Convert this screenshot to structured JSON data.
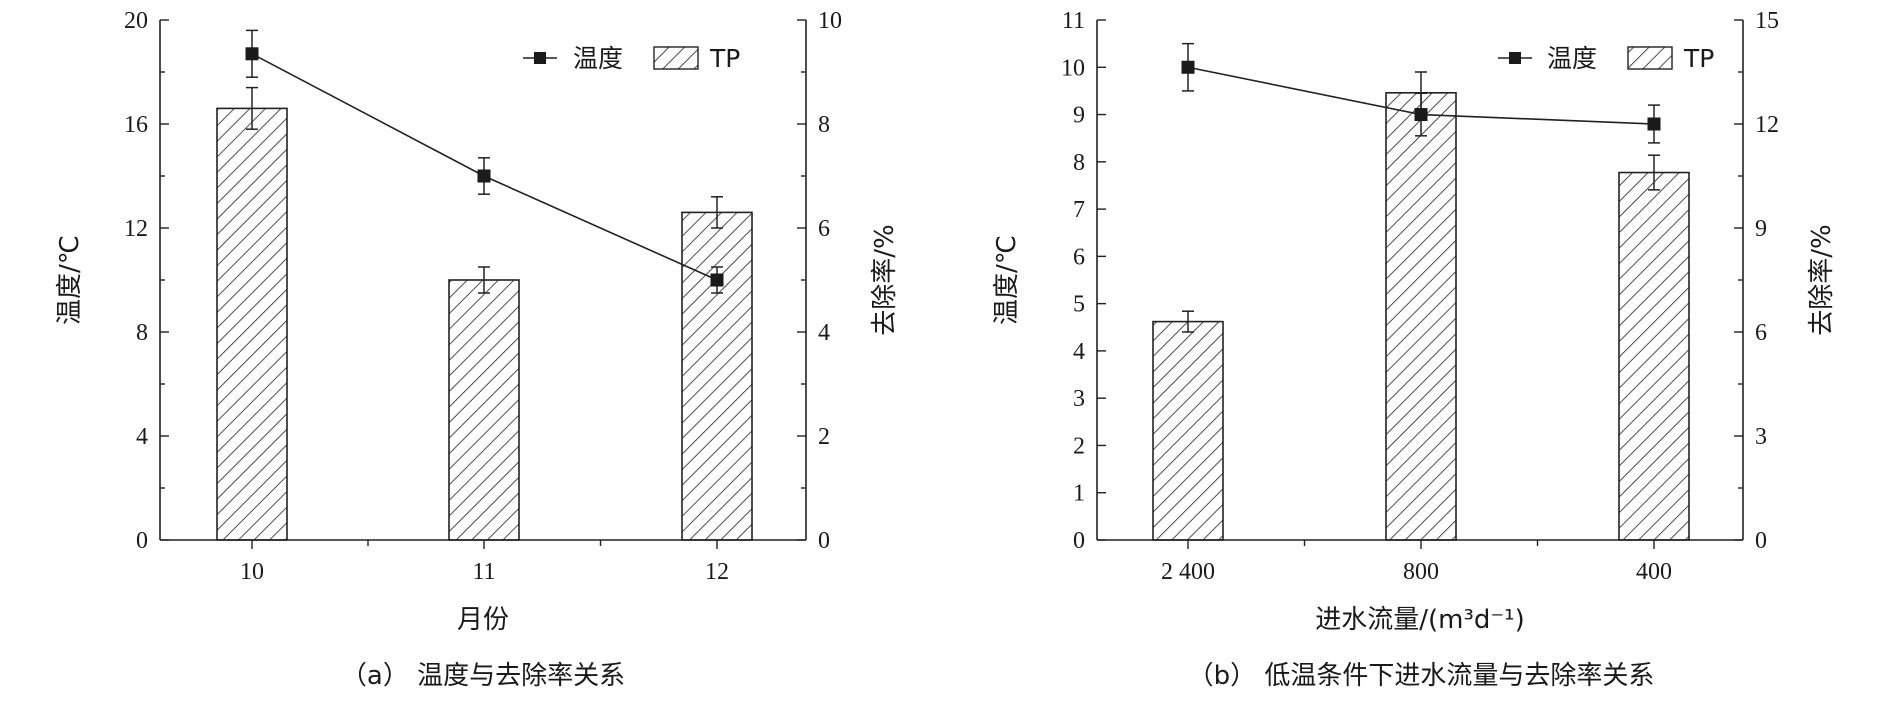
{
  "chart_data": [
    {
      "type": "bar",
      "caption": "（a） 温度与去除率关系",
      "xlabel": "月份",
      "ylabel_left": "温度/℃",
      "ylabel_right": "去除率/%",
      "categories": [
        "10",
        "11",
        "12"
      ],
      "y_left_lim": [
        0,
        20
      ],
      "y_left_ticks": [
        "0",
        "4",
        "8",
        "12",
        "16",
        "20"
      ],
      "y_right_lim": [
        0,
        10
      ],
      "y_right_ticks": [
        "0",
        "2",
        "4",
        "6",
        "8",
        "10"
      ],
      "bar_series": {
        "name": "TP",
        "axis": "right",
        "values": [
          8.3,
          5.0,
          6.3
        ],
        "errors": [
          0.4,
          0.25,
          0.3
        ]
      },
      "line_series": {
        "name": "温度",
        "axis": "left",
        "values": [
          18.7,
          14.0,
          10.0
        ],
        "errors": [
          0.9,
          0.7,
          0.5
        ]
      },
      "legend": [
        "温度",
        "TP"
      ],
      "legend_position": "top-right",
      "grid": false
    },
    {
      "type": "bar",
      "caption": "（b） 低温条件下进水流量与去除率关系",
      "xlabel": "进水流量/(m³d⁻¹)",
      "ylabel_left": "温度/℃",
      "ylabel_right": "去除率/%",
      "categories": [
        "2 400",
        "800",
        "400"
      ],
      "y_left_lim": [
        0,
        11
      ],
      "y_left_ticks": [
        "0",
        "1",
        "2",
        "3",
        "4",
        "5",
        "6",
        "7",
        "8",
        "9",
        "10",
        "11"
      ],
      "y_right_lim": [
        0,
        15
      ],
      "y_right_ticks": [
        "0",
        "3",
        "6",
        "9",
        "12",
        "15"
      ],
      "bar_series": {
        "name": "TP",
        "axis": "right",
        "values": [
          6.3,
          12.9,
          10.6
        ],
        "errors": [
          0.3,
          0.6,
          0.5
        ]
      },
      "line_series": {
        "name": "温度",
        "axis": "left",
        "values": [
          10.0,
          9.0,
          8.8
        ],
        "errors": [
          0.5,
          0.45,
          0.4
        ]
      },
      "legend": [
        "温度",
        "TP"
      ],
      "legend_position": "top-right",
      "grid": false
    }
  ]
}
